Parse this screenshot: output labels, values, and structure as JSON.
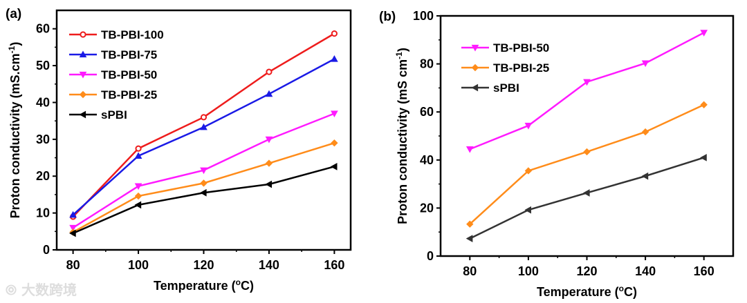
{
  "watermark": "大数跨境",
  "chart_data": [
    {
      "type": "line",
      "panel_label": "(a)",
      "xlabel": "Temperature (",
      "xlabel_sup": "o",
      "xlabel_end": "C)",
      "ylabel": "Proton conductivity (mS.cm",
      "ylabel_sup": "-1",
      "ylabel_end": ")",
      "xlim": [
        75,
        165
      ],
      "ylim": [
        0,
        65
      ],
      "xticks": [
        80,
        100,
        120,
        140,
        160
      ],
      "yticks": [
        0,
        10,
        20,
        30,
        40,
        50,
        60
      ],
      "legend_position": "top-left",
      "x": [
        80,
        100,
        120,
        140,
        160
      ],
      "series": [
        {
          "name": "TB-PBI-100",
          "color": "#ee1c1c",
          "marker": "circle",
          "values": [
            9.0,
            27.5,
            36.0,
            48.3,
            58.7
          ]
        },
        {
          "name": "TB-PBI-75",
          "color": "#1a1ae6",
          "marker": "triangle-up",
          "values": [
            9.5,
            25.5,
            33.3,
            42.3,
            51.8
          ]
        },
        {
          "name": "TB-PBI-50",
          "color": "#ff1aff",
          "marker": "triangle-down",
          "values": [
            6.0,
            17.3,
            21.6,
            30.0,
            37.0
          ]
        },
        {
          "name": "TB-PBI-25",
          "color": "#ff8c1a",
          "marker": "diamond",
          "values": [
            4.8,
            14.6,
            18.1,
            23.5,
            29.0
          ]
        },
        {
          "name": "sPBI",
          "color": "#000000",
          "marker": "triangle-left",
          "values": [
            4.5,
            12.2,
            15.5,
            17.8,
            22.6
          ]
        }
      ]
    },
    {
      "type": "line",
      "panel_label": "(b)",
      "xlabel": "Temperature (",
      "xlabel_sup": "o",
      "xlabel_end": "C)",
      "ylabel": "Proton conductivity (mS cm",
      "ylabel_sup": "-1",
      "ylabel_end": ")",
      "xlim": [
        70,
        170
      ],
      "ylim": [
        0,
        100
      ],
      "xticks": [
        80,
        100,
        120,
        140,
        160
      ],
      "yticks": [
        0,
        20,
        40,
        60,
        80,
        100
      ],
      "legend_position": "top-left",
      "x": [
        80,
        100,
        120,
        140,
        160
      ],
      "series": [
        {
          "name": "TB-PBI-50",
          "color": "#ff1aff",
          "marker": "triangle-down",
          "values": [
            44.5,
            54.3,
            72.5,
            80.3,
            93.0
          ]
        },
        {
          "name": "TB-PBI-25",
          "color": "#ff8c1a",
          "marker": "diamond",
          "values": [
            13.3,
            35.5,
            43.4,
            51.7,
            63.0
          ]
        },
        {
          "name": "sPBI",
          "color": "#333333",
          "marker": "triangle-left",
          "values": [
            7.3,
            19.2,
            26.3,
            33.3,
            41.0
          ]
        }
      ]
    }
  ]
}
